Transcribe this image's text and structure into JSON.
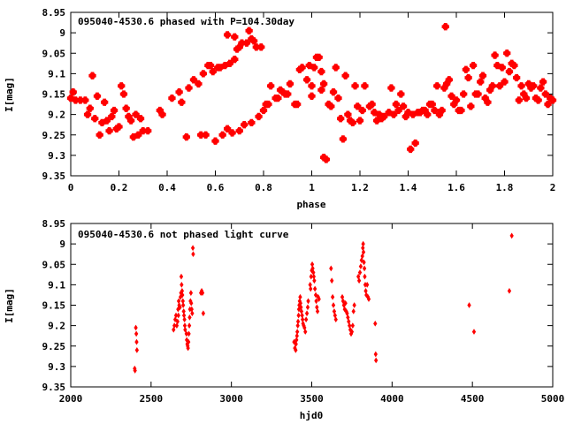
{
  "chart_data": [
    {
      "type": "scatter",
      "title": "095040-4530.6 phased with P=104.30day",
      "xlabel": "phase",
      "ylabel": "I[mag]",
      "xlim": [
        0,
        2
      ],
      "ylim": [
        8.95,
        9.35
      ],
      "y_inverted": true,
      "x_ticks": [
        "0",
        "0.2",
        "0.4",
        "0.6",
        "0.8",
        "1",
        "1.2",
        "1.4",
        "1.6",
        "1.8",
        "2"
      ],
      "y_ticks": [
        "8.95",
        "9",
        "9.05",
        "9.1",
        "9.15",
        "9.2",
        "9.25",
        "9.3",
        "9.35"
      ],
      "marker": "star",
      "color": "#ff0000",
      "points": [
        [
          0.0,
          9.16
        ],
        [
          0.01,
          9.145
        ],
        [
          0.02,
          9.165
        ],
        [
          0.04,
          9.165
        ],
        [
          0.06,
          9.165
        ],
        [
          0.07,
          9.2
        ],
        [
          0.08,
          9.185
        ],
        [
          0.09,
          9.105
        ],
        [
          0.1,
          9.21
        ],
        [
          0.11,
          9.155
        ],
        [
          0.12,
          9.25
        ],
        [
          0.13,
          9.22
        ],
        [
          0.14,
          9.17
        ],
        [
          0.15,
          9.215
        ],
        [
          0.16,
          9.24
        ],
        [
          0.17,
          9.205
        ],
        [
          0.18,
          9.19
        ],
        [
          0.19,
          9.235
        ],
        [
          0.2,
          9.23
        ],
        [
          0.21,
          9.13
        ],
        [
          0.22,
          9.15
        ],
        [
          0.23,
          9.185
        ],
        [
          0.24,
          9.205
        ],
        [
          0.25,
          9.215
        ],
        [
          0.26,
          9.255
        ],
        [
          0.27,
          9.2
        ],
        [
          0.28,
          9.25
        ],
        [
          0.29,
          9.21
        ],
        [
          0.3,
          9.24
        ],
        [
          0.32,
          9.24
        ],
        [
          0.37,
          9.19
        ],
        [
          0.38,
          9.2
        ],
        [
          0.42,
          9.16
        ],
        [
          0.45,
          9.145
        ],
        [
          0.46,
          9.17
        ],
        [
          0.48,
          9.255
        ],
        [
          0.49,
          9.135
        ],
        [
          0.51,
          9.115
        ],
        [
          0.53,
          9.125
        ],
        [
          0.54,
          9.25
        ],
        [
          0.55,
          9.1
        ],
        [
          0.56,
          9.25
        ],
        [
          0.57,
          9.08
        ],
        [
          0.58,
          9.08
        ],
        [
          0.59,
          9.095
        ],
        [
          0.6,
          9.265
        ],
        [
          0.61,
          9.085
        ],
        [
          0.62,
          9.085
        ],
        [
          0.63,
          9.25
        ],
        [
          0.64,
          9.08
        ],
        [
          0.65,
          9.005
        ],
        [
          0.65,
          9.235
        ],
        [
          0.66,
          9.075
        ],
        [
          0.67,
          9.245
        ],
        [
          0.68,
          9.01
        ],
        [
          0.68,
          9.065
        ],
        [
          0.69,
          9.04
        ],
        [
          0.7,
          9.035
        ],
        [
          0.7,
          9.24
        ],
        [
          0.71,
          9.025
        ],
        [
          0.72,
          9.225
        ],
        [
          0.73,
          9.025
        ],
        [
          0.74,
          8.995
        ],
        [
          0.75,
          9.015
        ],
        [
          0.75,
          9.22
        ],
        [
          0.76,
          9.02
        ],
        [
          0.77,
          9.035
        ],
        [
          0.78,
          9.205
        ],
        [
          0.79,
          9.035
        ],
        [
          0.8,
          9.19
        ],
        [
          0.81,
          9.175
        ],
        [
          0.82,
          9.175
        ],
        [
          0.83,
          9.13
        ],
        [
          0.85,
          9.16
        ],
        [
          0.86,
          9.16
        ],
        [
          0.87,
          9.14
        ],
        [
          0.88,
          9.145
        ],
        [
          0.89,
          9.15
        ],
        [
          0.9,
          9.15
        ],
        [
          0.91,
          9.125
        ],
        [
          0.93,
          9.175
        ],
        [
          0.94,
          9.175
        ],
        [
          0.95,
          9.09
        ],
        [
          0.96,
          9.085
        ],
        [
          0.98,
          9.115
        ],
        [
          0.99,
          9.08
        ],
        [
          1.0,
          9.13
        ],
        [
          1.0,
          9.155
        ],
        [
          1.01,
          9.085
        ],
        [
          1.02,
          9.06
        ],
        [
          1.03,
          9.06
        ],
        [
          1.04,
          9.14
        ],
        [
          1.04,
          9.095
        ],
        [
          1.05,
          9.125
        ],
        [
          1.05,
          9.305
        ],
        [
          1.06,
          9.31
        ],
        [
          1.07,
          9.175
        ],
        [
          1.08,
          9.18
        ],
        [
          1.09,
          9.145
        ],
        [
          1.1,
          9.085
        ],
        [
          1.11,
          9.16
        ],
        [
          1.12,
          9.21
        ],
        [
          1.13,
          9.26
        ],
        [
          1.14,
          9.105
        ],
        [
          1.15,
          9.2
        ],
        [
          1.16,
          9.215
        ],
        [
          1.17,
          9.22
        ],
        [
          1.18,
          9.13
        ],
        [
          1.19,
          9.18
        ],
        [
          1.2,
          9.215
        ],
        [
          1.21,
          9.19
        ],
        [
          1.22,
          9.13
        ],
        [
          1.24,
          9.18
        ],
        [
          1.25,
          9.175
        ],
        [
          1.26,
          9.195
        ],
        [
          1.27,
          9.215
        ],
        [
          1.28,
          9.2
        ],
        [
          1.29,
          9.21
        ],
        [
          1.3,
          9.205
        ],
        [
          1.32,
          9.195
        ],
        [
          1.33,
          9.135
        ],
        [
          1.34,
          9.2
        ],
        [
          1.35,
          9.175
        ],
        [
          1.36,
          9.19
        ],
        [
          1.37,
          9.15
        ],
        [
          1.38,
          9.18
        ],
        [
          1.39,
          9.205
        ],
        [
          1.4,
          9.195
        ],
        [
          1.41,
          9.285
        ],
        [
          1.42,
          9.2
        ],
        [
          1.43,
          9.27
        ],
        [
          1.44,
          9.195
        ],
        [
          1.45,
          9.195
        ],
        [
          1.46,
          9.19
        ],
        [
          1.47,
          9.19
        ],
        [
          1.48,
          9.2
        ],
        [
          1.49,
          9.175
        ],
        [
          1.5,
          9.175
        ],
        [
          1.51,
          9.19
        ],
        [
          1.52,
          9.13
        ],
        [
          1.53,
          9.2
        ],
        [
          1.54,
          9.19
        ],
        [
          1.55,
          9.135
        ],
        [
          1.555,
          8.985
        ],
        [
          1.56,
          9.125
        ],
        [
          1.57,
          9.115
        ],
        [
          1.58,
          9.155
        ],
        [
          1.59,
          9.175
        ],
        [
          1.6,
          9.165
        ],
        [
          1.61,
          9.19
        ],
        [
          1.62,
          9.19
        ],
        [
          1.63,
          9.15
        ],
        [
          1.64,
          9.09
        ],
        [
          1.65,
          9.11
        ],
        [
          1.66,
          9.18
        ],
        [
          1.67,
          9.08
        ],
        [
          1.68,
          9.15
        ],
        [
          1.69,
          9.15
        ],
        [
          1.7,
          9.12
        ],
        [
          1.71,
          9.105
        ],
        [
          1.72,
          9.16
        ],
        [
          1.73,
          9.17
        ],
        [
          1.74,
          9.14
        ],
        [
          1.75,
          9.13
        ],
        [
          1.76,
          9.055
        ],
        [
          1.77,
          9.08
        ],
        [
          1.78,
          9.13
        ],
        [
          1.79,
          9.085
        ],
        [
          1.8,
          9.12
        ],
        [
          1.81,
          9.05
        ],
        [
          1.82,
          9.095
        ],
        [
          1.83,
          9.075
        ],
        [
          1.84,
          9.08
        ],
        [
          1.85,
          9.11
        ],
        [
          1.86,
          9.165
        ],
        [
          1.87,
          9.13
        ],
        [
          1.88,
          9.15
        ],
        [
          1.89,
          9.16
        ],
        [
          1.9,
          9.125
        ],
        [
          1.91,
          9.135
        ],
        [
          1.92,
          9.13
        ],
        [
          1.93,
          9.16
        ],
        [
          1.94,
          9.165
        ],
        [
          1.95,
          9.135
        ],
        [
          1.96,
          9.12
        ],
        [
          1.97,
          9.15
        ],
        [
          1.98,
          9.175
        ],
        [
          1.99,
          9.16
        ],
        [
          2.0,
          9.165
        ]
      ]
    },
    {
      "type": "scatter",
      "title": "095040-4530.6 not phased light curve",
      "xlabel": "hjd0",
      "ylabel": "I[mag]",
      "xlim": [
        2000,
        5000
      ],
      "ylim": [
        8.95,
        9.35
      ],
      "y_inverted": true,
      "x_ticks": [
        "2000",
        "2500",
        "3000",
        "3500",
        "4000",
        "4500",
        "5000"
      ],
      "y_ticks": [
        "8.95",
        "9",
        "9.05",
        "9.1",
        "9.15",
        "9.2",
        "9.25",
        "9.3",
        "9.35"
      ],
      "marker": "diamond",
      "color": "#ff0000",
      "points": [
        [
          2398,
          9.305
        ],
        [
          2400,
          9.31
        ],
        [
          2405,
          9.205
        ],
        [
          2408,
          9.22
        ],
        [
          2410,
          9.24
        ],
        [
          2412,
          9.26
        ],
        [
          2640,
          9.21
        ],
        [
          2645,
          9.2
        ],
        [
          2650,
          9.185
        ],
        [
          2655,
          9.175
        ],
        [
          2660,
          9.2
        ],
        [
          2665,
          9.19
        ],
        [
          2668,
          9.16
        ],
        [
          2670,
          9.175
        ],
        [
          2672,
          9.14
        ],
        [
          2675,
          9.15
        ],
        [
          2680,
          9.155
        ],
        [
          2683,
          9.13
        ],
        [
          2686,
          9.12
        ],
        [
          2688,
          9.08
        ],
        [
          2690,
          9.1
        ],
        [
          2693,
          9.115
        ],
        [
          2695,
          9.125
        ],
        [
          2698,
          9.14
        ],
        [
          2700,
          9.15
        ],
        [
          2703,
          9.165
        ],
        [
          2705,
          9.175
        ],
        [
          2708,
          9.185
        ],
        [
          2710,
          9.2
        ],
        [
          2712,
          9.21
        ],
        [
          2720,
          9.22
        ],
        [
          2722,
          9.235
        ],
        [
          2725,
          9.245
        ],
        [
          2728,
          9.25
        ],
        [
          2730,
          9.255
        ],
        [
          2733,
          9.24
        ],
        [
          2735,
          9.22
        ],
        [
          2738,
          9.2
        ],
        [
          2740,
          9.18
        ],
        [
          2742,
          9.16
        ],
        [
          2745,
          9.14
        ],
        [
          2748,
          9.12
        ],
        [
          2750,
          9.145
        ],
        [
          2753,
          9.16
        ],
        [
          2756,
          9.17
        ],
        [
          2760,
          9.01
        ],
        [
          2762,
          9.025
        ],
        [
          2810,
          9.12
        ],
        [
          2815,
          9.115
        ],
        [
          2820,
          9.12
        ],
        [
          2825,
          9.17
        ],
        [
          3390,
          9.24
        ],
        [
          3395,
          9.255
        ],
        [
          3400,
          9.26
        ],
        [
          3402,
          9.245
        ],
        [
          3405,
          9.235
        ],
        [
          3408,
          9.225
        ],
        [
          3410,
          9.215
        ],
        [
          3413,
          9.2
        ],
        [
          3415,
          9.19
        ],
        [
          3418,
          9.175
        ],
        [
          3420,
          9.16
        ],
        [
          3422,
          9.15
        ],
        [
          3425,
          9.14
        ],
        [
          3428,
          9.13
        ],
        [
          3430,
          9.145
        ],
        [
          3433,
          9.155
        ],
        [
          3436,
          9.165
        ],
        [
          3440,
          9.175
        ],
        [
          3443,
          9.185
        ],
        [
          3446,
          9.195
        ],
        [
          3450,
          9.2
        ],
        [
          3455,
          9.205
        ],
        [
          3460,
          9.215
        ],
        [
          3465,
          9.185
        ],
        [
          3470,
          9.17
        ],
        [
          3475,
          9.155
        ],
        [
          3478,
          9.14
        ],
        [
          3490,
          9.1
        ],
        [
          3493,
          9.11
        ],
        [
          3496,
          9.08
        ],
        [
          3500,
          9.065
        ],
        [
          3503,
          9.05
        ],
        [
          3506,
          9.06
        ],
        [
          3510,
          9.07
        ],
        [
          3513,
          9.08
        ],
        [
          3516,
          9.09
        ],
        [
          3520,
          9.11
        ],
        [
          3525,
          9.125
        ],
        [
          3528,
          9.14
        ],
        [
          3532,
          9.155
        ],
        [
          3536,
          9.165
        ],
        [
          3540,
          9.13
        ],
        [
          3545,
          9.135
        ],
        [
          3620,
          9.06
        ],
        [
          3625,
          9.09
        ],
        [
          3630,
          9.13
        ],
        [
          3635,
          9.15
        ],
        [
          3640,
          9.165
        ],
        [
          3645,
          9.175
        ],
        [
          3650,
          9.185
        ],
        [
          3690,
          9.13
        ],
        [
          3695,
          9.14
        ],
        [
          3700,
          9.15
        ],
        [
          3705,
          9.16
        ],
        [
          3710,
          9.145
        ],
        [
          3715,
          9.165
        ],
        [
          3720,
          9.17
        ],
        [
          3725,
          9.18
        ],
        [
          3730,
          9.19
        ],
        [
          3735,
          9.2
        ],
        [
          3740,
          9.21
        ],
        [
          3745,
          9.22
        ],
        [
          3750,
          9.215
        ],
        [
          3755,
          9.2
        ],
        [
          3760,
          9.165
        ],
        [
          3765,
          9.15
        ],
        [
          3790,
          9.08
        ],
        [
          3795,
          9.09
        ],
        [
          3800,
          9.07
        ],
        [
          3805,
          9.055
        ],
        [
          3810,
          9.04
        ],
        [
          3815,
          9.03
        ],
        [
          3818,
          9.01
        ],
        [
          3820,
          9.0
        ],
        [
          3822,
          9.02
        ],
        [
          3825,
          9.045
        ],
        [
          3828,
          9.06
        ],
        [
          3830,
          9.08
        ],
        [
          3833,
          9.1
        ],
        [
          3836,
          9.115
        ],
        [
          3840,
          9.125
        ],
        [
          3845,
          9.1
        ],
        [
          3850,
          9.13
        ],
        [
          3855,
          9.135
        ],
        [
          3895,
          9.195
        ],
        [
          3898,
          9.27
        ],
        [
          3900,
          9.285
        ],
        [
          4480,
          9.15
        ],
        [
          4510,
          9.215
        ],
        [
          4730,
          9.115
        ],
        [
          4745,
          8.98
        ]
      ]
    }
  ]
}
